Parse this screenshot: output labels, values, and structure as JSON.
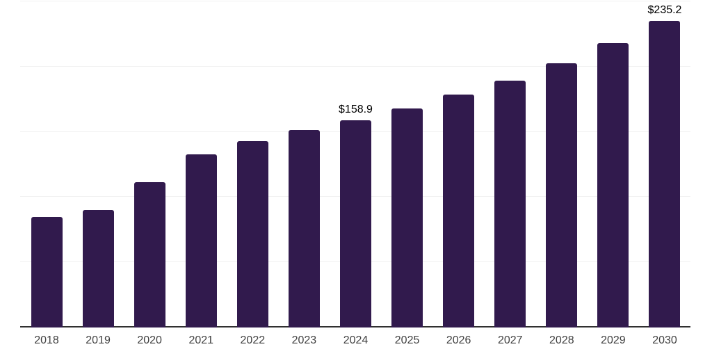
{
  "chart_data": {
    "type": "bar",
    "title": "",
    "xlabel": "",
    "ylabel": "",
    "categories": [
      "2018",
      "2019",
      "2020",
      "2021",
      "2022",
      "2023",
      "2024",
      "2025",
      "2026",
      "2027",
      "2028",
      "2029",
      "2030"
    ],
    "values": [
      84.5,
      90.1,
      111.5,
      132.6,
      143.0,
      151.5,
      158.9,
      167.9,
      178.7,
      189.3,
      202.4,
      218.1,
      235.2
    ],
    "value_labels": {
      "2024": "$158.9",
      "2030": "$235.2"
    },
    "ylim": [
      0,
      250
    ],
    "gridline_step": 50,
    "grid": true,
    "legend": "none",
    "y_axis_tick_labels": "none"
  },
  "style": {
    "background": "#ffffff",
    "bar_color": "#311a4d",
    "gridline_color": "#f1f1f1",
    "axis_color": "#303030",
    "tick_label_color": "#404040",
    "value_label_color": "#000000"
  }
}
